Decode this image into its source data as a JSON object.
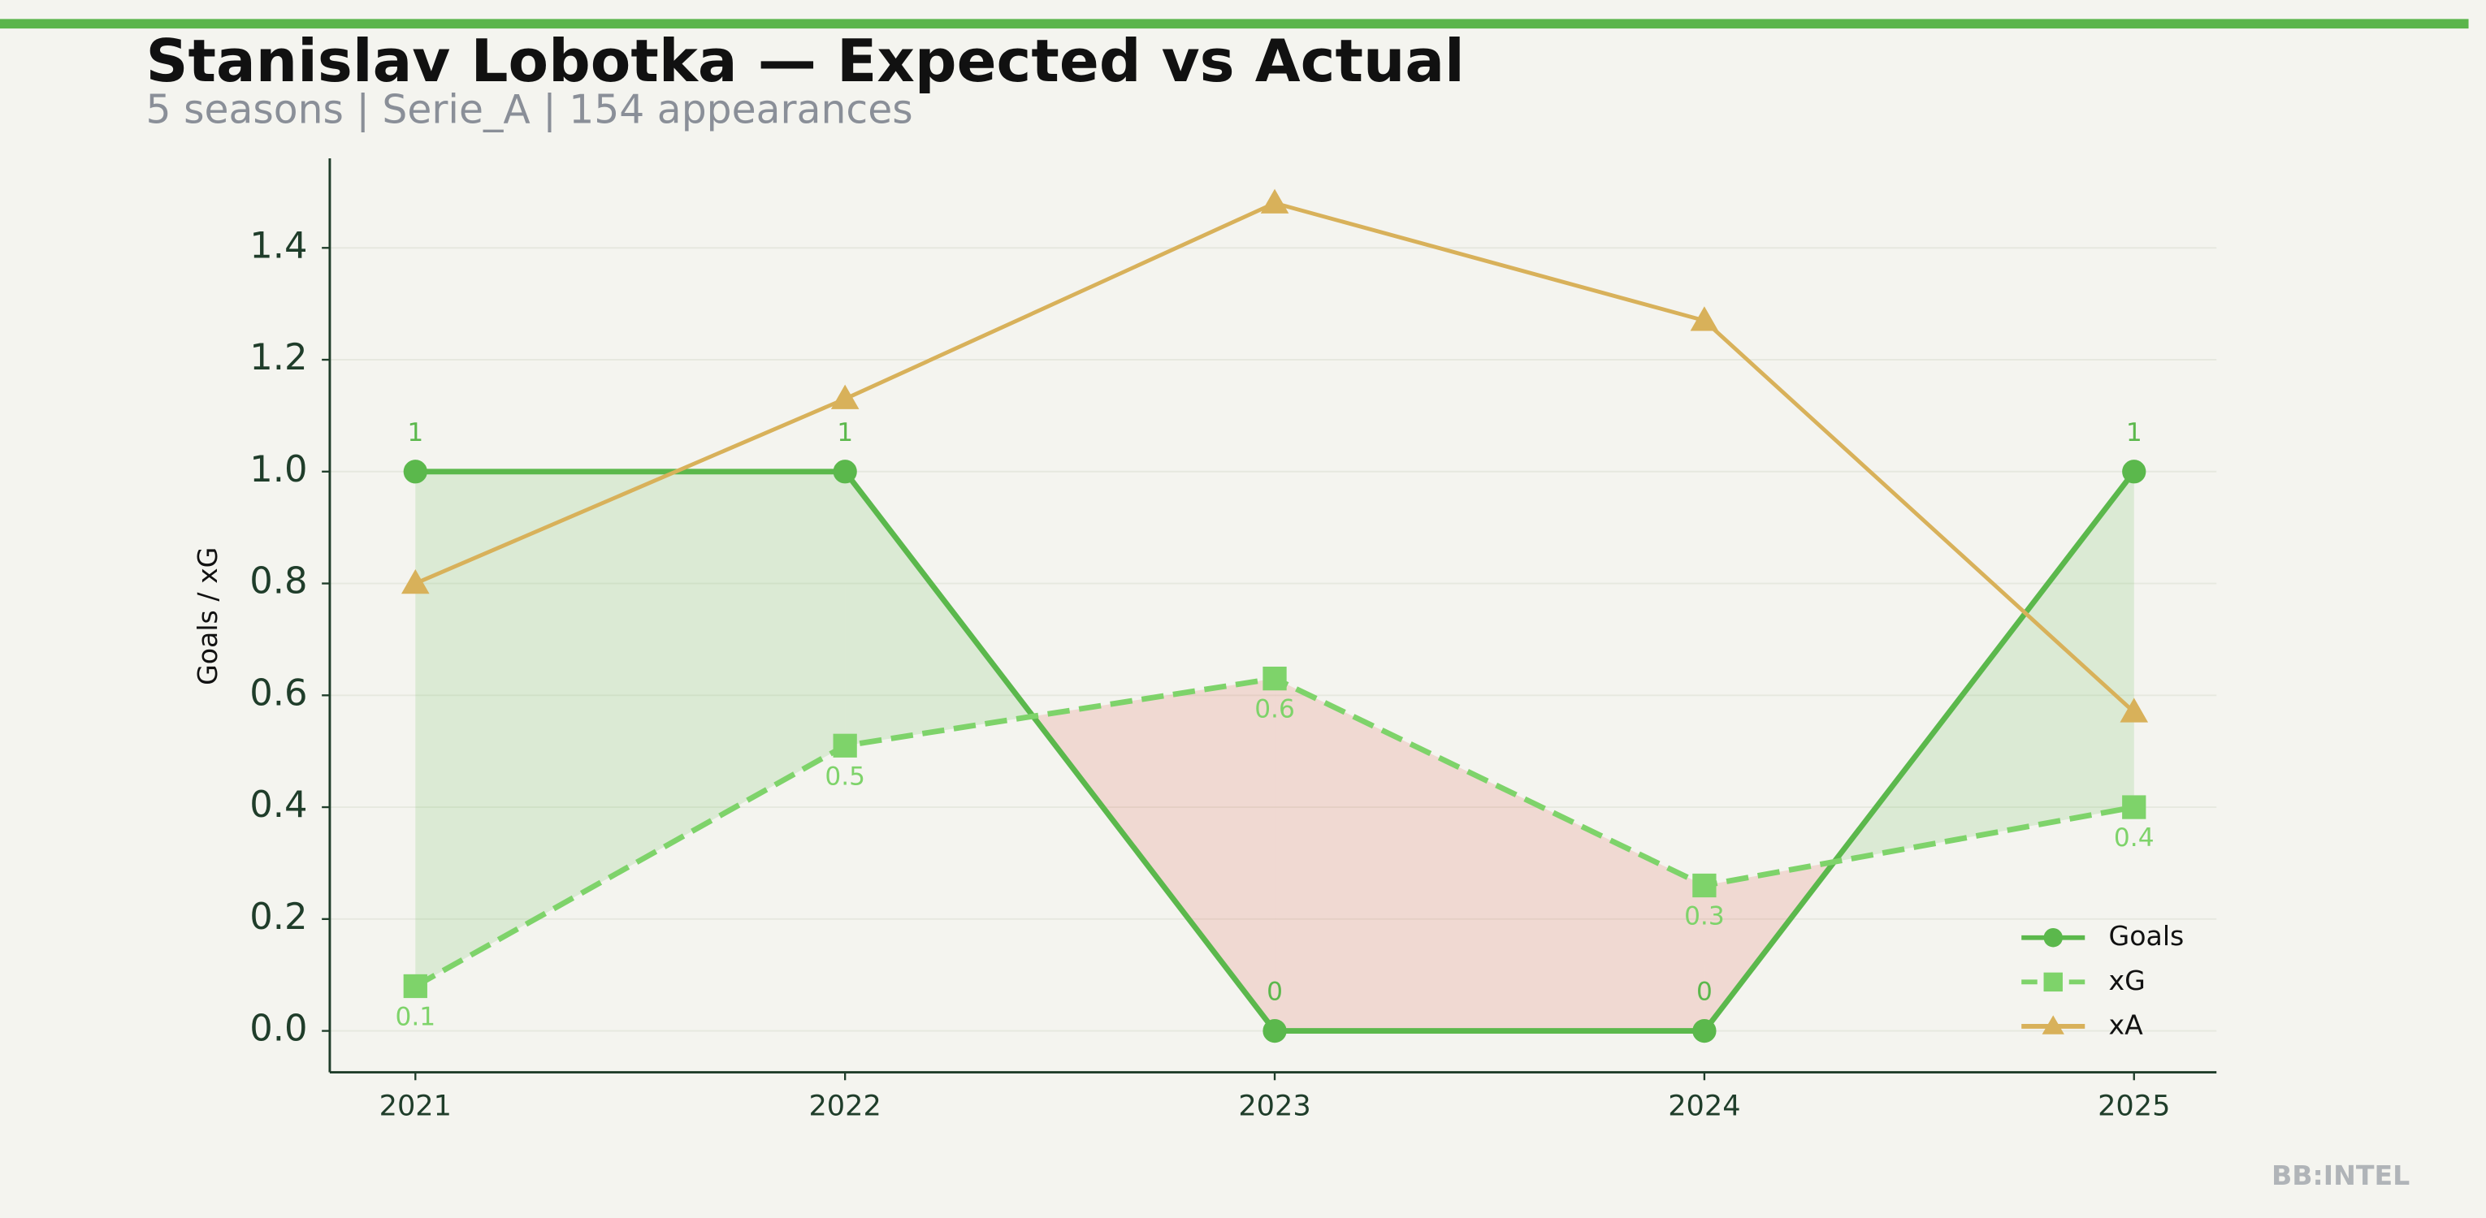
{
  "chart_data": {
    "type": "line",
    "title": "Stanislav Lobotka — Expected vs Actual",
    "subtitle": "5 seasons | Serie_A | 154 appearances",
    "y_label": "Goals / xG",
    "watermark": "BB:INTEL",
    "categories": [
      "2021",
      "2022",
      "2023",
      "2024",
      "2025"
    ],
    "series": [
      {
        "name": "Goals",
        "color": "#5bb84c",
        "marker": "circle",
        "dash": false,
        "values": [
          1,
          1,
          0,
          0,
          1
        ]
      },
      {
        "name": "xG",
        "color": "#7ed36a",
        "marker": "square",
        "dash": true,
        "values": [
          0.08,
          0.51,
          0.63,
          0.26,
          0.4
        ],
        "value_labels": [
          "0.1",
          "0.5",
          "0.6",
          "0.3",
          "0.4"
        ]
      },
      {
        "name": "xA",
        "color": "#d8b15a",
        "marker": "triangle",
        "dash": false,
        "values": [
          0.8,
          1.13,
          1.48,
          1.27,
          0.57
        ]
      }
    ],
    "ylim": [
      -0.074,
      1.56
    ],
    "yticks": [
      {
        "value": 0,
        "label": "0.0"
      },
      0.2,
      0.4,
      0.6,
      0.8,
      {
        "value": 1,
        "label": "1.0"
      },
      1.2,
      1.4
    ],
    "grid": true,
    "legend": "lower right",
    "over_color": "#5bb84c",
    "under_color": "#e07060"
  }
}
